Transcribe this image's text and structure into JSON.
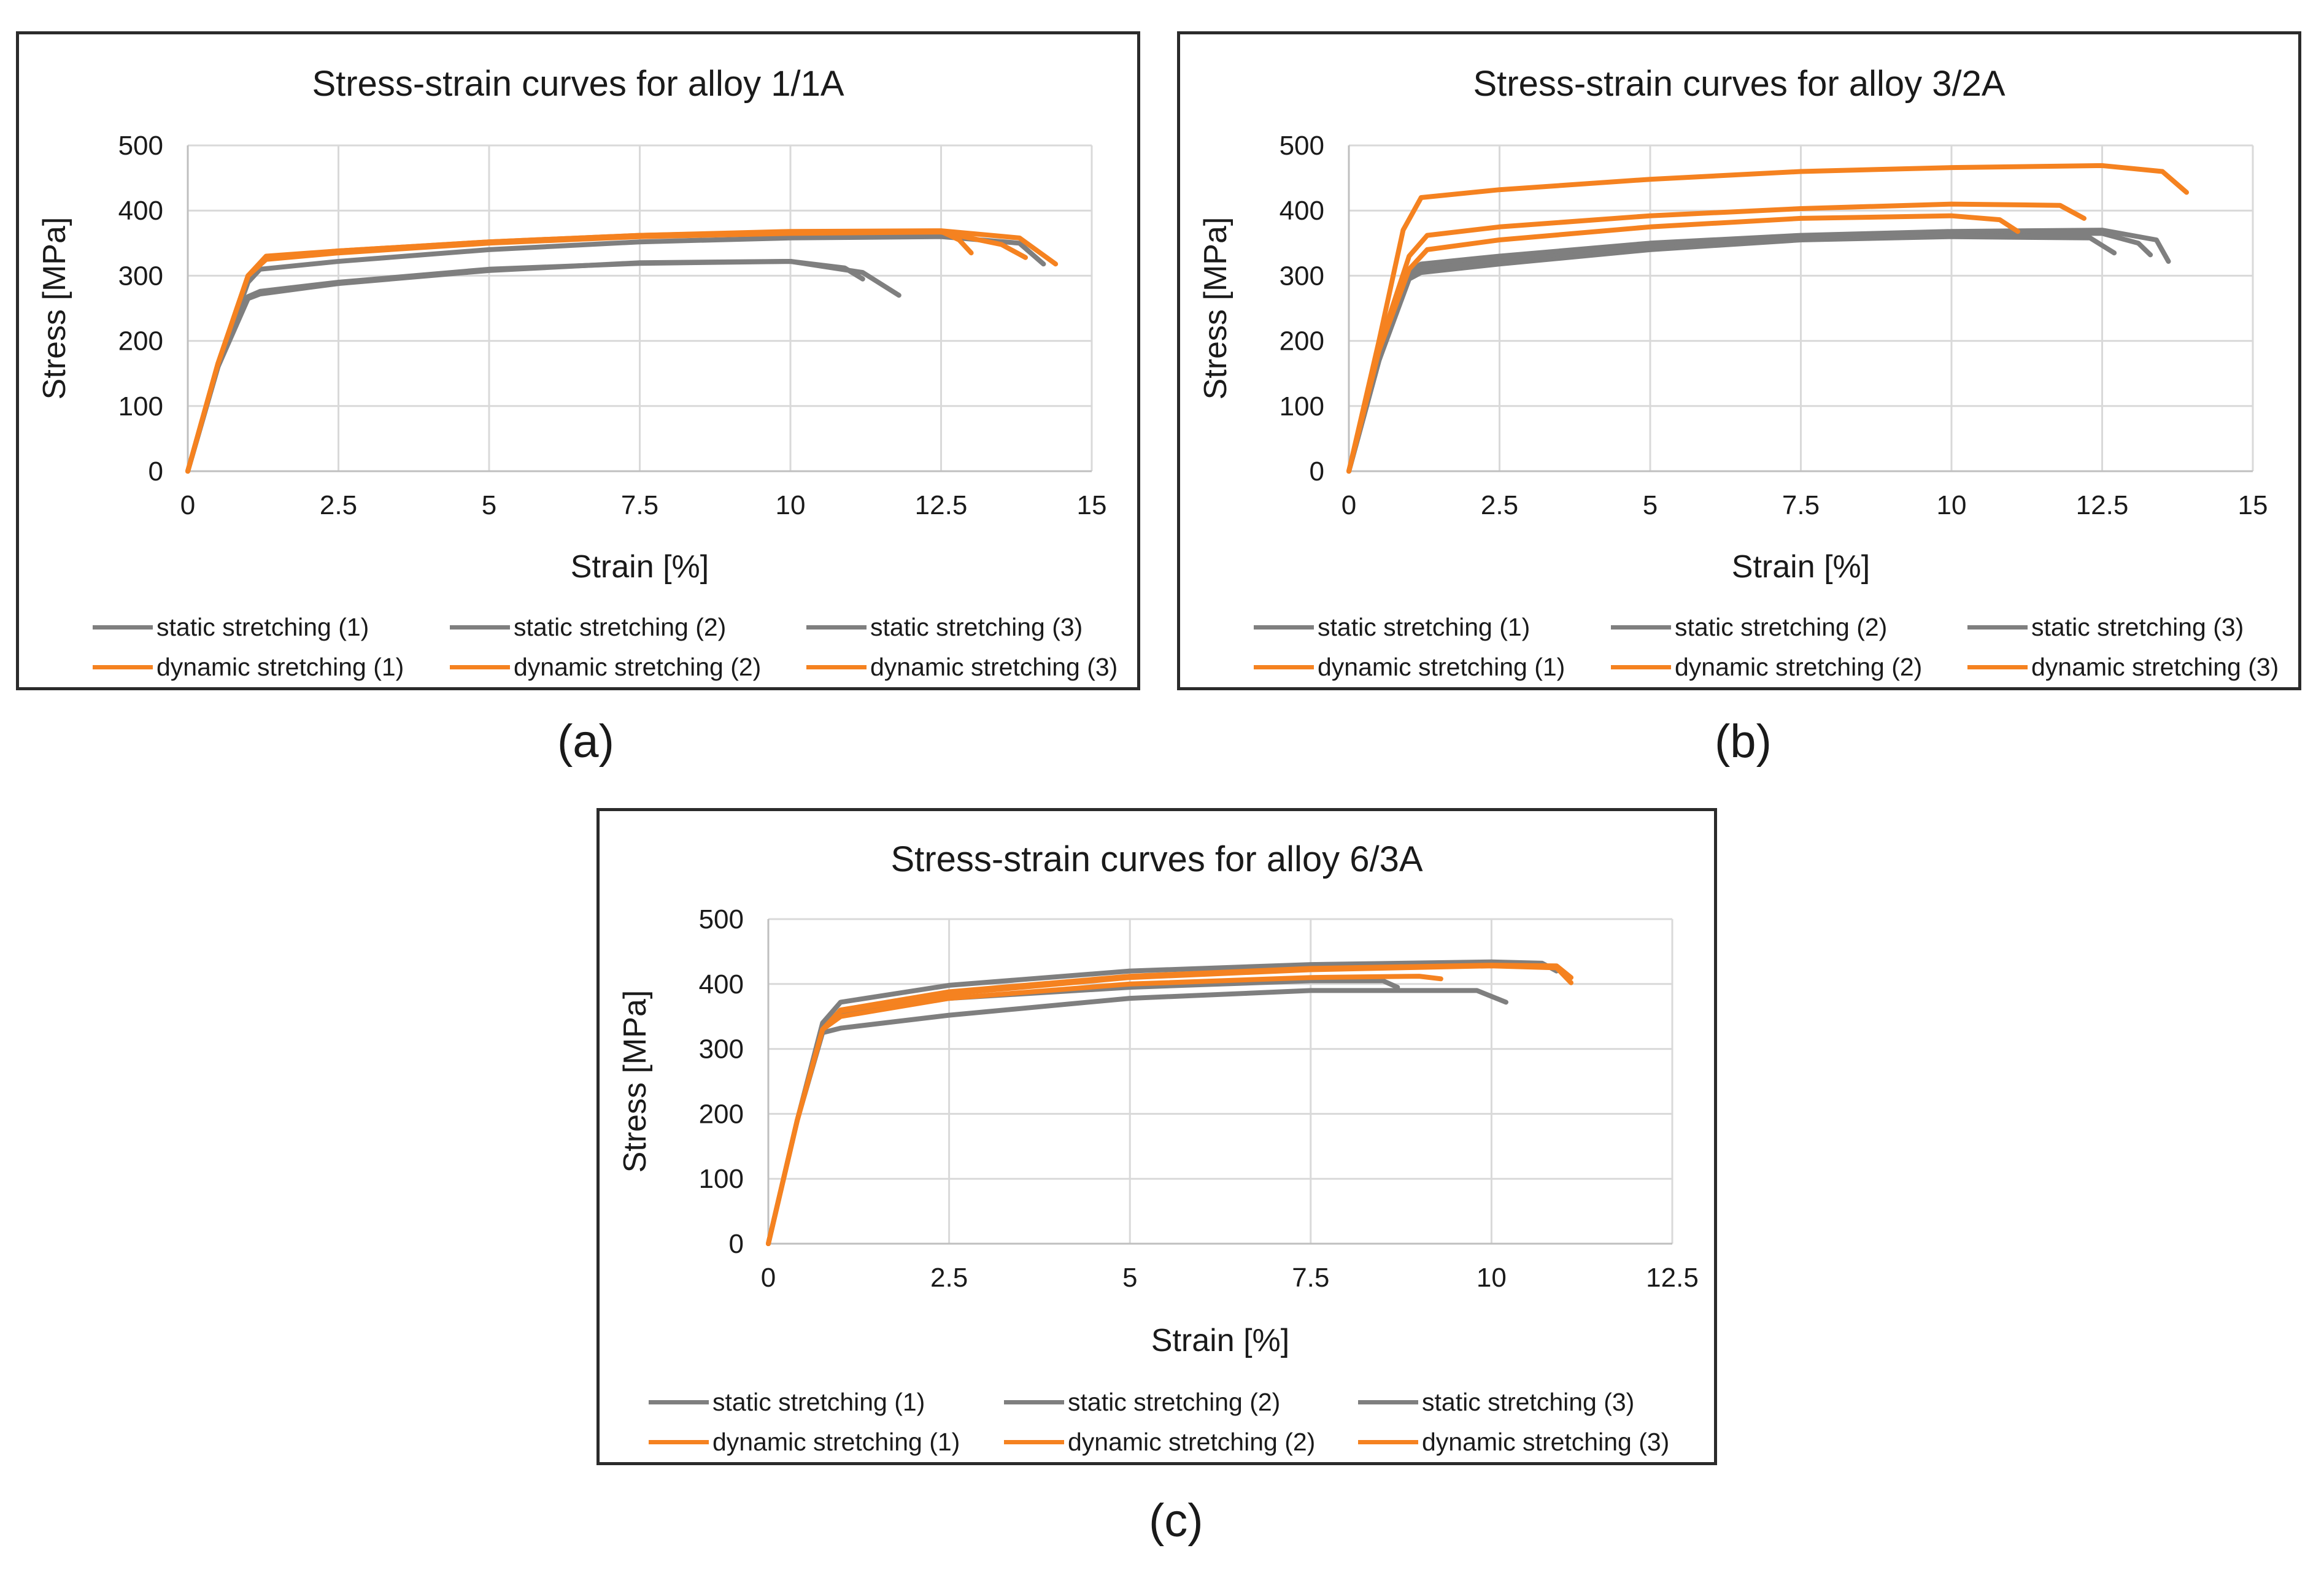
{
  "captions": {
    "a": "(a)",
    "b": "(b)",
    "c": "(c)"
  },
  "colors": {
    "static": "#7f7f7f",
    "dynamic": "#f58220",
    "grid": "#d9d9d9",
    "axis": "#bfbfbf",
    "text": "#1a1a1a"
  },
  "legend": {
    "static": [
      "static stretching (1)",
      "static stretching (2)",
      "static stretching (3)"
    ],
    "dynamic": [
      "dynamic stretching (1)",
      "dynamic stretching (2)",
      "dynamic stretching (3)"
    ]
  },
  "chart_data": [
    {
      "type": "line",
      "title": "Stress-strain curves for alloy  1/1A",
      "xlabel": "Strain [%]",
      "ylabel": "Stress [MPa]",
      "xlim": [
        0,
        15
      ],
      "ylim": [
        0,
        500
      ],
      "xticks": [
        0,
        2.5,
        5,
        7.5,
        10,
        12.5,
        15
      ],
      "xtick_labels": [
        "0",
        "2.5",
        "5",
        "7.5",
        "10",
        "12.5",
        "15"
      ],
      "yticks": [
        0,
        100,
        200,
        300,
        400,
        500
      ],
      "ytick_labels": [
        "0",
        "100",
        "200",
        "300",
        "400",
        "500"
      ],
      "grid": true,
      "series": [
        {
          "name": "static stretching (1)",
          "kind": "static",
          "x": [
            0,
            0.5,
            1.0,
            1.2,
            2.5,
            5,
            7.5,
            10,
            10.9,
            11.2
          ],
          "y": [
            0,
            160,
            265,
            272,
            288,
            308,
            320,
            322,
            312,
            295
          ]
        },
        {
          "name": "static stretching (2)",
          "kind": "static",
          "x": [
            0,
            0.5,
            1.0,
            1.2,
            2.5,
            5,
            7.5,
            10,
            11.2,
            11.8
          ],
          "y": [
            0,
            160,
            268,
            276,
            290,
            310,
            319,
            322,
            305,
            270
          ]
        },
        {
          "name": "static stretching (3)",
          "kind": "static",
          "x": [
            0,
            0.5,
            1.0,
            1.2,
            2.5,
            5,
            7.5,
            10,
            12.5,
            13.8,
            14.2
          ],
          "y": [
            0,
            160,
            290,
            310,
            322,
            340,
            352,
            358,
            360,
            350,
            318
          ]
        },
        {
          "name": "dynamic stretching (1)",
          "kind": "dynamic",
          "x": [
            0,
            0.5,
            1.0,
            1.3,
            2.5,
            5,
            7.5,
            10,
            12.5,
            12.8,
            13.0
          ],
          "y": [
            0,
            165,
            300,
            328,
            338,
            352,
            362,
            367,
            368,
            355,
            335
          ]
        },
        {
          "name": "dynamic stretching (2)",
          "kind": "dynamic",
          "x": [
            0,
            0.5,
            1.0,
            1.3,
            2.5,
            5,
            7.5,
            10,
            12.5,
            13.5,
            13.9
          ],
          "y": [
            0,
            165,
            300,
            325,
            335,
            350,
            360,
            365,
            367,
            348,
            328
          ]
        },
        {
          "name": "dynamic stretching (3)",
          "kind": "dynamic",
          "x": [
            0,
            0.5,
            1.0,
            1.3,
            2.5,
            5,
            7.5,
            10,
            12.5,
            13.8,
            14.4
          ],
          "y": [
            0,
            165,
            300,
            330,
            338,
            352,
            362,
            368,
            369,
            358,
            318
          ]
        }
      ]
    },
    {
      "type": "line",
      "title": "Stress-strain curves for alloy  3/2A",
      "xlabel": "Strain [%]",
      "ylabel": "Stress [MPa]",
      "xlim": [
        0,
        15
      ],
      "ylim": [
        0,
        500
      ],
      "xticks": [
        0,
        2.5,
        5,
        7.5,
        10,
        12.5,
        15
      ],
      "xtick_labels": [
        "0",
        "2.5",
        "5",
        "7.5",
        "10",
        "12.5",
        "15"
      ],
      "yticks": [
        0,
        100,
        200,
        300,
        400,
        500
      ],
      "ytick_labels": [
        "0",
        "100",
        "200",
        "300",
        "400",
        "500"
      ],
      "grid": true,
      "series": [
        {
          "name": "static stretching (1)",
          "kind": "static",
          "x": [
            0,
            0.5,
            1.0,
            1.2,
            2.5,
            5,
            7.5,
            10,
            12.3,
            12.7
          ],
          "y": [
            0,
            170,
            295,
            305,
            318,
            340,
            355,
            360,
            358,
            335
          ]
        },
        {
          "name": "static stretching (2)",
          "kind": "static",
          "x": [
            0,
            0.5,
            1.0,
            1.2,
            2.5,
            5,
            7.5,
            10,
            12.5,
            13.1,
            13.3
          ],
          "y": [
            0,
            170,
            300,
            312,
            325,
            345,
            360,
            365,
            365,
            350,
            332
          ]
        },
        {
          "name": "static stretching (3)",
          "kind": "static",
          "x": [
            0,
            0.5,
            1.0,
            1.2,
            2.5,
            5,
            7.5,
            10,
            12.5,
            13.4,
            13.6
          ],
          "y": [
            0,
            170,
            305,
            318,
            330,
            350,
            362,
            368,
            370,
            355,
            322
          ]
        },
        {
          "name": "dynamic stretching (1)",
          "kind": "dynamic",
          "x": [
            0,
            0.5,
            0.9,
            1.2,
            2.5,
            5,
            7.5,
            10,
            12.5,
            13.5,
            13.9
          ],
          "y": [
            0,
            200,
            370,
            420,
            432,
            448,
            460,
            466,
            469,
            460,
            428
          ]
        },
        {
          "name": "dynamic stretching (2)",
          "kind": "dynamic",
          "x": [
            0,
            0.5,
            1.0,
            1.3,
            2.5,
            5,
            7.5,
            10,
            11.8,
            12.2
          ],
          "y": [
            0,
            190,
            330,
            362,
            375,
            392,
            403,
            410,
            408,
            388
          ]
        },
        {
          "name": "dynamic stretching (3)",
          "kind": "dynamic",
          "x": [
            0,
            0.5,
            1.0,
            1.3,
            2.5,
            5,
            7.5,
            10,
            10.8,
            11.1
          ],
          "y": [
            0,
            185,
            310,
            340,
            355,
            375,
            388,
            392,
            386,
            368
          ]
        }
      ]
    },
    {
      "type": "line",
      "title": "Stress-strain curves for alloy  6/3A",
      "xlabel": "Strain [%]",
      "ylabel": "Stress [MPa]",
      "xlim": [
        0,
        12.5
      ],
      "ylim": [
        0,
        500
      ],
      "xticks": [
        0,
        2.5,
        5,
        7.5,
        10,
        12.5
      ],
      "xtick_labels": [
        "0",
        "2.5",
        "5",
        "7.5",
        "10",
        "12.5"
      ],
      "yticks": [
        0,
        100,
        200,
        300,
        400,
        500
      ],
      "ytick_labels": [
        "0",
        "100",
        "200",
        "300",
        "400",
        "500"
      ],
      "grid": true,
      "series": [
        {
          "name": "static stretching (1)",
          "kind": "static",
          "x": [
            0,
            0.4,
            0.75,
            1.0,
            2.5,
            5,
            7.5,
            9.8,
            10.2
          ],
          "y": [
            0,
            190,
            325,
            332,
            352,
            378,
            390,
            390,
            372
          ]
        },
        {
          "name": "static stretching (2)",
          "kind": "static",
          "x": [
            0,
            0.4,
            0.75,
            1.0,
            2.5,
            5,
            7.5,
            8.5,
            8.7
          ],
          "y": [
            0,
            190,
            335,
            355,
            378,
            395,
            405,
            405,
            395
          ]
        },
        {
          "name": "static stretching (3)",
          "kind": "static",
          "x": [
            0,
            0.4,
            0.75,
            1.0,
            2.5,
            5,
            7.5,
            10,
            10.7,
            10.9
          ],
          "y": [
            0,
            190,
            340,
            372,
            398,
            420,
            430,
            434,
            432,
            420
          ]
        },
        {
          "name": "dynamic stretching (1)",
          "kind": "dynamic",
          "x": [
            0,
            0.4,
            0.75,
            1.0,
            2.5,
            5,
            7.5,
            10,
            10.9,
            11.1
          ],
          "y": [
            0,
            190,
            330,
            358,
            385,
            410,
            422,
            428,
            425,
            402
          ]
        },
        {
          "name": "dynamic stretching (2)",
          "kind": "dynamic",
          "x": [
            0,
            0.4,
            0.75,
            1.0,
            2.5,
            5,
            7.5,
            9.0,
            9.3
          ],
          "y": [
            0,
            190,
            330,
            350,
            378,
            400,
            410,
            412,
            408
          ]
        },
        {
          "name": "dynamic stretching (3)",
          "kind": "dynamic",
          "x": [
            0,
            0.4,
            0.75,
            1.0,
            2.5,
            5,
            7.5,
            10,
            10.9,
            11.1
          ],
          "y": [
            0,
            190,
            330,
            360,
            388,
            412,
            424,
            429,
            428,
            410
          ]
        }
      ]
    }
  ]
}
